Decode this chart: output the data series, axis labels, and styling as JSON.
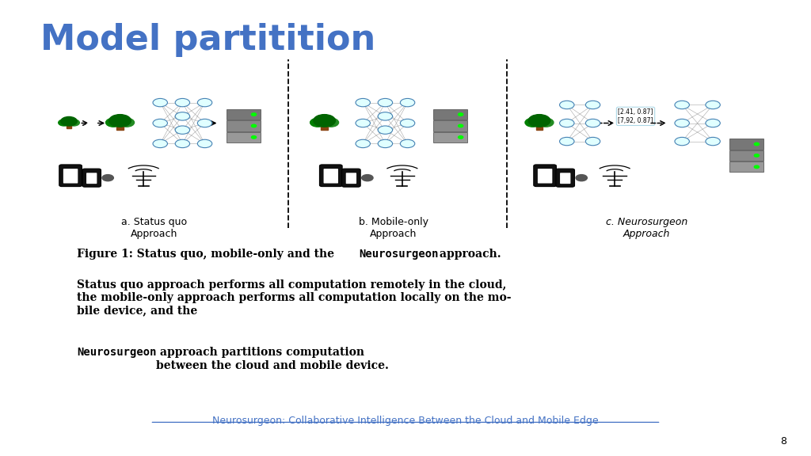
{
  "title": "Model partitition",
  "title_color": "#4472C4",
  "title_fontsize": 32,
  "background_color": "#FFFFFF",
  "link_text": "Neurosurgeon: Collaborative Intelligence Between the Cloud and Mobile Edge",
  "link_color": "#4472C4",
  "page_number": "8",
  "section_a_label": "a. Status quo\nApproach",
  "section_b_label": "b. Mobile-only\nApproach",
  "section_c_label": "c. Neurosurgeon\nApproach"
}
